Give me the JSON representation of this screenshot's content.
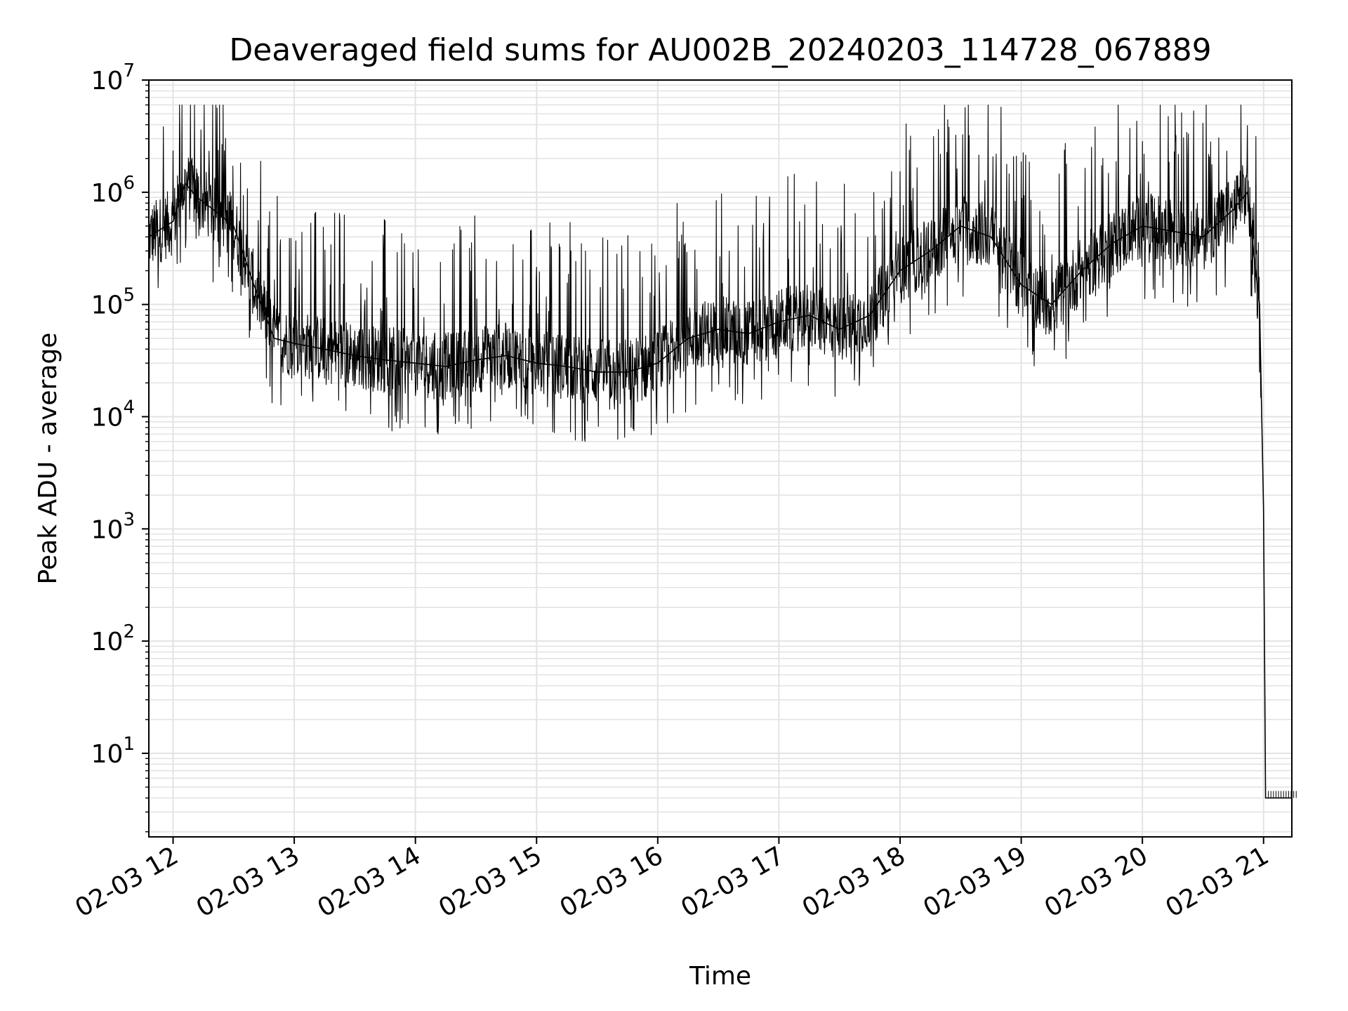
{
  "chart_data": {
    "type": "line",
    "title": "Deaveraged field sums for AU002B_20240203_114728_067889",
    "xlabel": "Time",
    "ylabel": "Peak ADU - average",
    "yscale": "log",
    "grid": true,
    "legend": "none",
    "line_color": "#000000",
    "xlim": [
      "2024-02-03 11:48",
      "2024-02-03 21:14"
    ],
    "ylim": [
      1.8,
      10000000
    ],
    "x_ticks": [
      {
        "t": "2024-02-03 12:00",
        "label": "02-03 12"
      },
      {
        "t": "2024-02-03 13:00",
        "label": "02-03 13"
      },
      {
        "t": "2024-02-03 14:00",
        "label": "02-03 14"
      },
      {
        "t": "2024-02-03 15:00",
        "label": "02-03 15"
      },
      {
        "t": "2024-02-03 16:00",
        "label": "02-03 16"
      },
      {
        "t": "2024-02-03 17:00",
        "label": "02-03 17"
      },
      {
        "t": "2024-02-03 18:00",
        "label": "02-03 18"
      },
      {
        "t": "2024-02-03 19:00",
        "label": "02-03 19"
      },
      {
        "t": "2024-02-03 20:00",
        "label": "02-03 20"
      },
      {
        "t": "2024-02-03 21:00",
        "label": "02-03 21"
      }
    ],
    "y_ticks": [
      {
        "value": 10,
        "base": "10",
        "exp": "1"
      },
      {
        "value": 100,
        "base": "10",
        "exp": "2"
      },
      {
        "value": 1000,
        "base": "10",
        "exp": "3"
      },
      {
        "value": 10000,
        "base": "10",
        "exp": "4"
      },
      {
        "value": 100000,
        "base": "10",
        "exp": "5"
      },
      {
        "value": 1000000,
        "base": "10",
        "exp": "6"
      },
      {
        "value": 10000000,
        "base": "10",
        "exp": "7"
      }
    ],
    "series": [
      {
        "x": [
          "2024-02-03 11:48",
          "2024-02-03 12:00",
          "2024-02-03 12:06",
          "2024-02-03 12:12",
          "2024-02-03 12:20",
          "2024-02-03 12:30",
          "2024-02-03 12:40",
          "2024-02-03 12:50",
          "2024-02-03 13:00",
          "2024-02-03 13:15",
          "2024-02-03 13:30",
          "2024-02-03 13:45",
          "2024-02-03 14:00",
          "2024-02-03 14:15",
          "2024-02-03 14:30",
          "2024-02-03 14:45",
          "2024-02-03 15:00",
          "2024-02-03 15:15",
          "2024-02-03 15:30",
          "2024-02-03 15:45",
          "2024-02-03 16:00",
          "2024-02-03 16:15",
          "2024-02-03 16:30",
          "2024-02-03 16:45",
          "2024-02-03 17:00",
          "2024-02-03 17:15",
          "2024-02-03 17:30",
          "2024-02-03 17:45",
          "2024-02-03 18:00",
          "2024-02-03 18:15",
          "2024-02-03 18:30",
          "2024-02-03 18:45",
          "2024-02-03 19:00",
          "2024-02-03 19:15",
          "2024-02-03 19:30",
          "2024-02-03 19:45",
          "2024-02-03 20:00",
          "2024-02-03 20:15",
          "2024-02-03 20:30",
          "2024-02-03 20:45",
          "2024-02-03 20:52",
          "2024-02-03 20:55",
          "2024-02-03 20:58",
          "2024-02-03 21:00",
          "2024-02-03 21:01",
          "2024-02-03 21:14"
        ],
        "y": [
          400000,
          550000,
          1200000,
          900000,
          700000,
          500000,
          150000,
          50000,
          45000,
          40000,
          35000,
          32000,
          30000,
          28000,
          32000,
          35000,
          30000,
          28000,
          25000,
          25000,
          30000,
          50000,
          60000,
          55000,
          70000,
          80000,
          60000,
          80000,
          200000,
          300000,
          500000,
          400000,
          150000,
          100000,
          200000,
          350000,
          500000,
          450000,
          400000,
          700000,
          1000000,
          300000,
          100000,
          1500,
          4,
          4
        ]
      }
    ]
  }
}
